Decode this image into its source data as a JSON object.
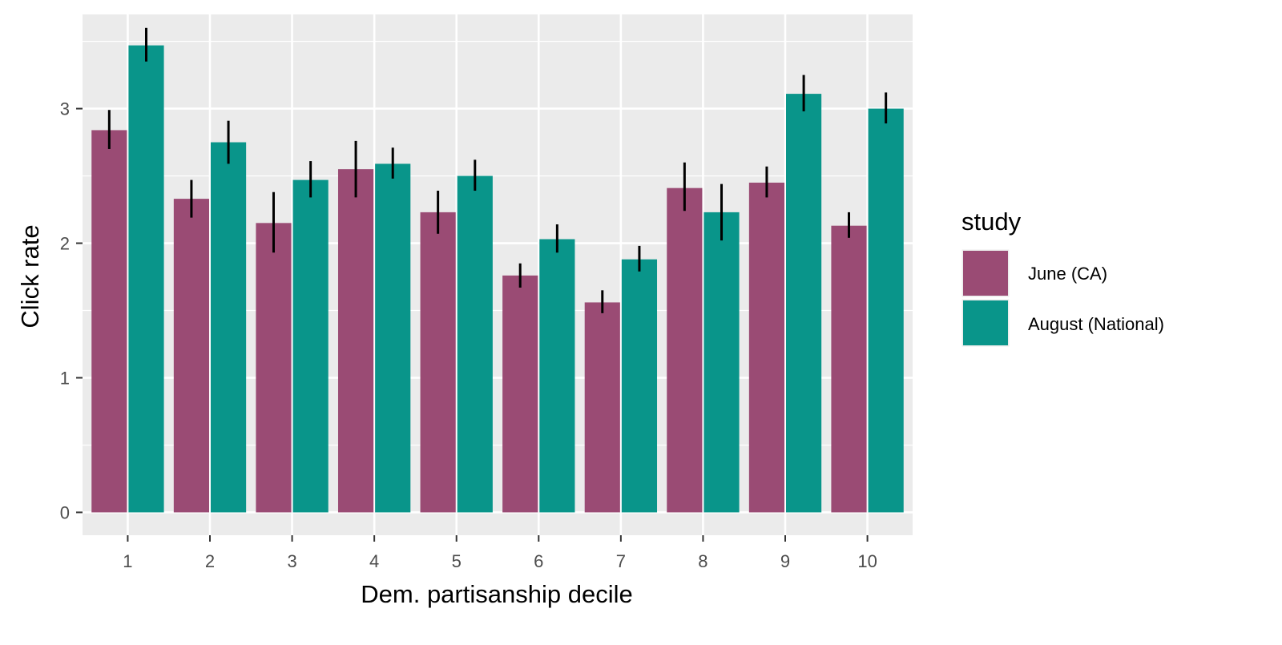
{
  "chart_data": {
    "type": "bar",
    "xlabel": "Dem. partisanship decile",
    "ylabel": "Click rate",
    "categories": [
      "1",
      "2",
      "3",
      "4",
      "5",
      "6",
      "7",
      "8",
      "9",
      "10"
    ],
    "ylim": [
      -0.17,
      3.7
    ],
    "yticks": [
      0,
      1,
      2,
      3
    ],
    "grid": true,
    "legend": {
      "title": "study",
      "position": "right"
    },
    "series": [
      {
        "name": "June (CA)",
        "color": "#9A4B74",
        "values": [
          2.84,
          2.33,
          2.15,
          2.55,
          2.23,
          1.76,
          1.56,
          2.41,
          2.45,
          2.13
        ],
        "error_low": [
          2.7,
          2.19,
          1.93,
          2.34,
          2.07,
          1.67,
          1.48,
          2.24,
          2.34,
          2.04
        ],
        "error_high": [
          2.99,
          2.47,
          2.38,
          2.76,
          2.39,
          1.85,
          1.65,
          2.6,
          2.57,
          2.23
        ]
      },
      {
        "name": "August (National)",
        "color": "#09958A",
        "values": [
          3.47,
          2.75,
          2.47,
          2.59,
          2.5,
          2.03,
          1.88,
          2.23,
          3.11,
          3.0
        ],
        "error_low": [
          3.35,
          2.59,
          2.34,
          2.48,
          2.39,
          1.93,
          1.79,
          2.02,
          2.98,
          2.89
        ],
        "error_high": [
          3.6,
          2.91,
          2.61,
          2.71,
          2.62,
          2.14,
          1.98,
          2.44,
          3.25,
          3.12
        ]
      }
    ]
  }
}
